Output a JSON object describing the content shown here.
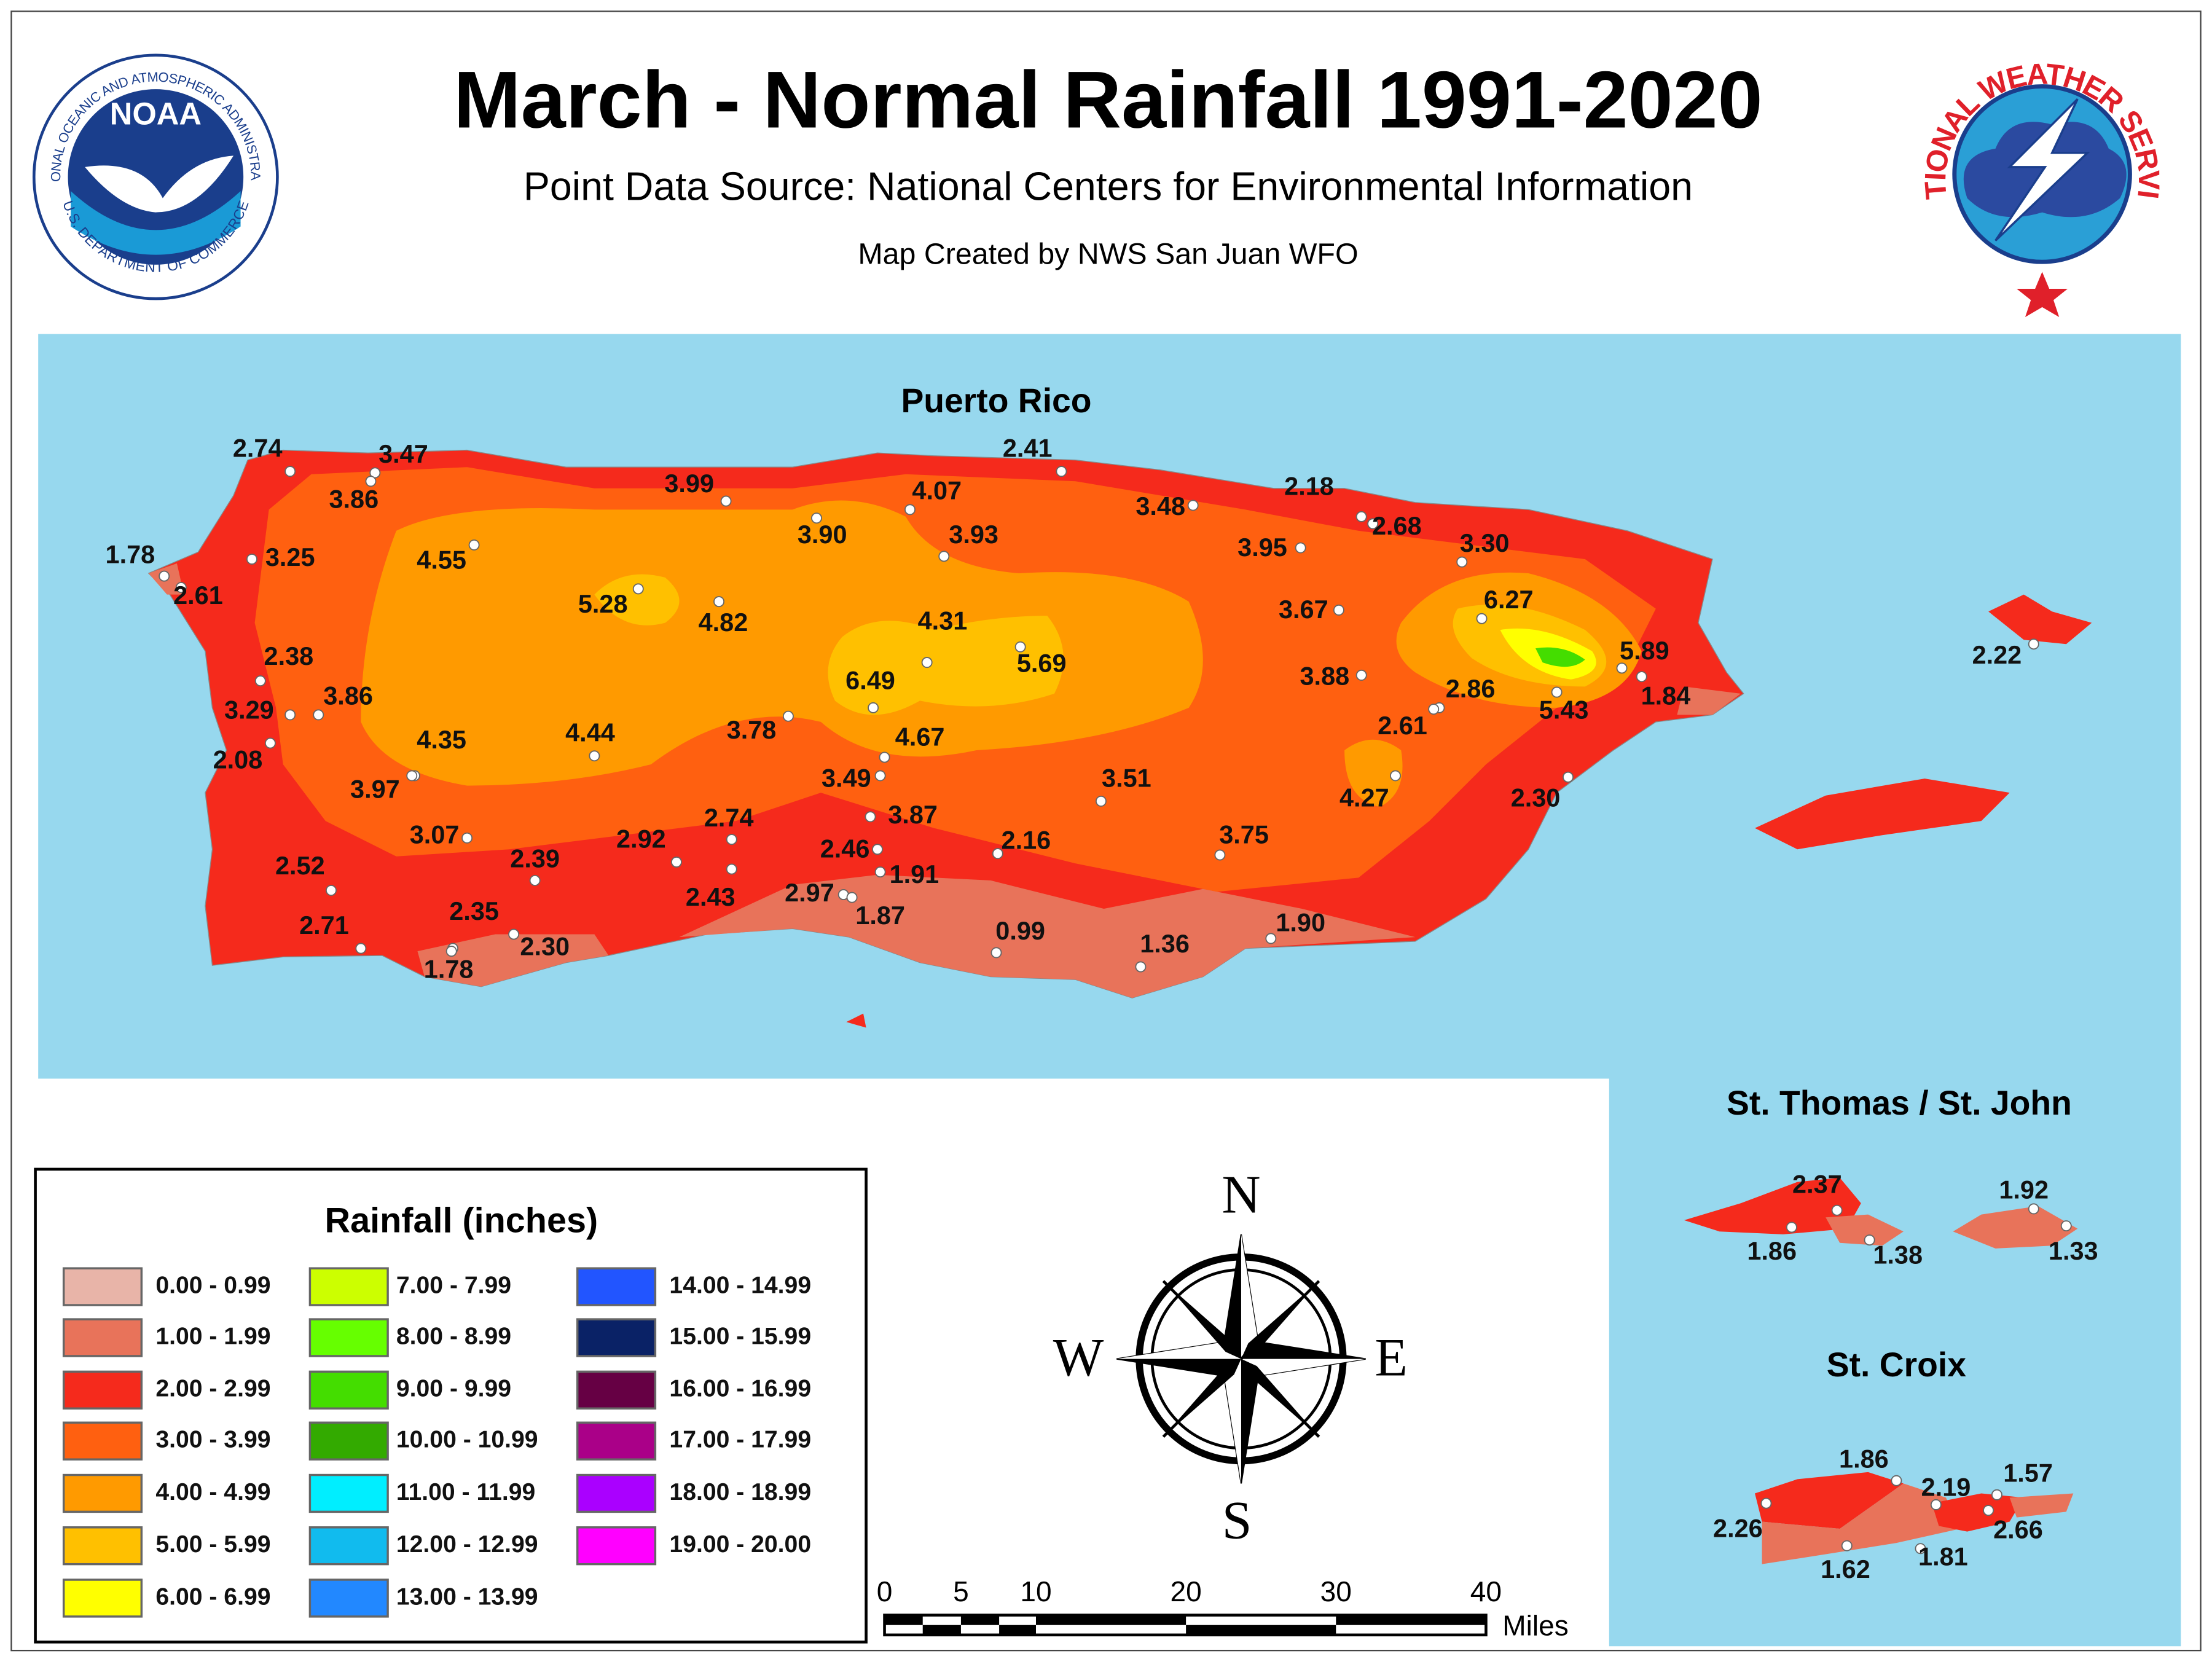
{
  "header": {
    "title": "March - Normal Rainfall 1991-2020",
    "subtitle": "Point Data Source: National Centers for Environmental Information",
    "credit": "Map Created by NWS San Juan WFO"
  },
  "logos": {
    "noaa": {
      "abbr": "NOAA",
      "ring": "NATIONAL OCEANIC AND ATMOSPHERIC ADMINISTRATION",
      "bottom": "U.S. DEPARTMENT OF COMMERCE"
    },
    "nws": {
      "ring": "NATIONAL WEATHER SERVICE"
    }
  },
  "maps": [
    {
      "label": "Puerto Rico",
      "stations": [
        "2.74",
        "3.47",
        "3.86",
        "1.78",
        "3.25",
        "2.61",
        "4.55",
        "3.99",
        "3.90",
        "4.07",
        "2.41",
        "3.93",
        "3.48",
        "2.18",
        "2.68",
        "3.30",
        "3.95",
        "5.28",
        "4.82",
        "4.31",
        "6.27",
        "3.67",
        "2.38",
        "5.69",
        "6.49",
        "3.88",
        "5.89",
        "1.84",
        "2.86",
        "5.43",
        "3.29",
        "3.86",
        "2.61",
        "4.35",
        "4.44",
        "3.78",
        "4.67",
        "2.08",
        "3.97",
        "3.49",
        "3.51",
        "4.27",
        "2.30",
        "3.07",
        "2.74",
        "3.87",
        "2.92",
        "2.46",
        "2.16",
        "3.75",
        "2.39",
        "1.91",
        "2.52",
        "2.43",
        "2.97",
        "2.35",
        "1.87",
        "1.90",
        "0.99",
        "2.71",
        "2.30",
        "1.36",
        "1.78",
        "2.22"
      ]
    },
    {
      "label": "St. Thomas / St. John",
      "stations": [
        "2.37",
        "1.86",
        "1.38",
        "1.92",
        "1.33"
      ]
    },
    {
      "label": "St. Croix",
      "stations": [
        "1.86",
        "2.19",
        "1.57",
        "2.26",
        "2.66",
        "1.62",
        "1.81"
      ]
    }
  ],
  "legend": {
    "title": "Rainfall (inches)",
    "classes": [
      {
        "label": "0.00 - 0.99",
        "color": "#e8b4a8"
      },
      {
        "label": "1.00 - 1.99",
        "color": "#e8735a"
      },
      {
        "label": "2.00 - 2.99",
        "color": "#f52a1c"
      },
      {
        "label": "3.00 - 3.99",
        "color": "#ff6010"
      },
      {
        "label": "4.00 - 4.99",
        "color": "#ff9a00"
      },
      {
        "label": "5.00 - 5.99",
        "color": "#ffc000"
      },
      {
        "label": "6.00 - 6.99",
        "color": "#ffff00"
      },
      {
        "label": "7.00 - 7.99",
        "color": "#ccff00"
      },
      {
        "label": "8.00 - 8.99",
        "color": "#66ff00"
      },
      {
        "label": "9.00 - 9.99",
        "color": "#44dd00"
      },
      {
        "label": "10.00 - 10.99",
        "color": "#33aa00"
      },
      {
        "label": "11.00 - 11.99",
        "color": "#00eeff"
      },
      {
        "label": "12.00 - 12.99",
        "color": "#11bbee"
      },
      {
        "label": "13.00 - 13.99",
        "color": "#2288ff"
      },
      {
        "label": "14.00 - 14.99",
        "color": "#2255ff"
      },
      {
        "label": "15.00 - 15.99",
        "color": "#0a2266"
      },
      {
        "label": "16.00 - 16.99",
        "color": "#660044"
      },
      {
        "label": "17.00 - 17.99",
        "color": "#aa0088"
      },
      {
        "label": "18.00 - 18.99",
        "color": "#aa00ff"
      },
      {
        "label": "19.00 - 20.00",
        "color": "#ff00ff"
      }
    ]
  },
  "compass": {
    "n": "N",
    "s": "S",
    "e": "E",
    "w": "W"
  },
  "scale_bar": {
    "ticks": [
      "0",
      "5",
      "10",
      "20",
      "30",
      "40"
    ],
    "unit": "Miles"
  }
}
